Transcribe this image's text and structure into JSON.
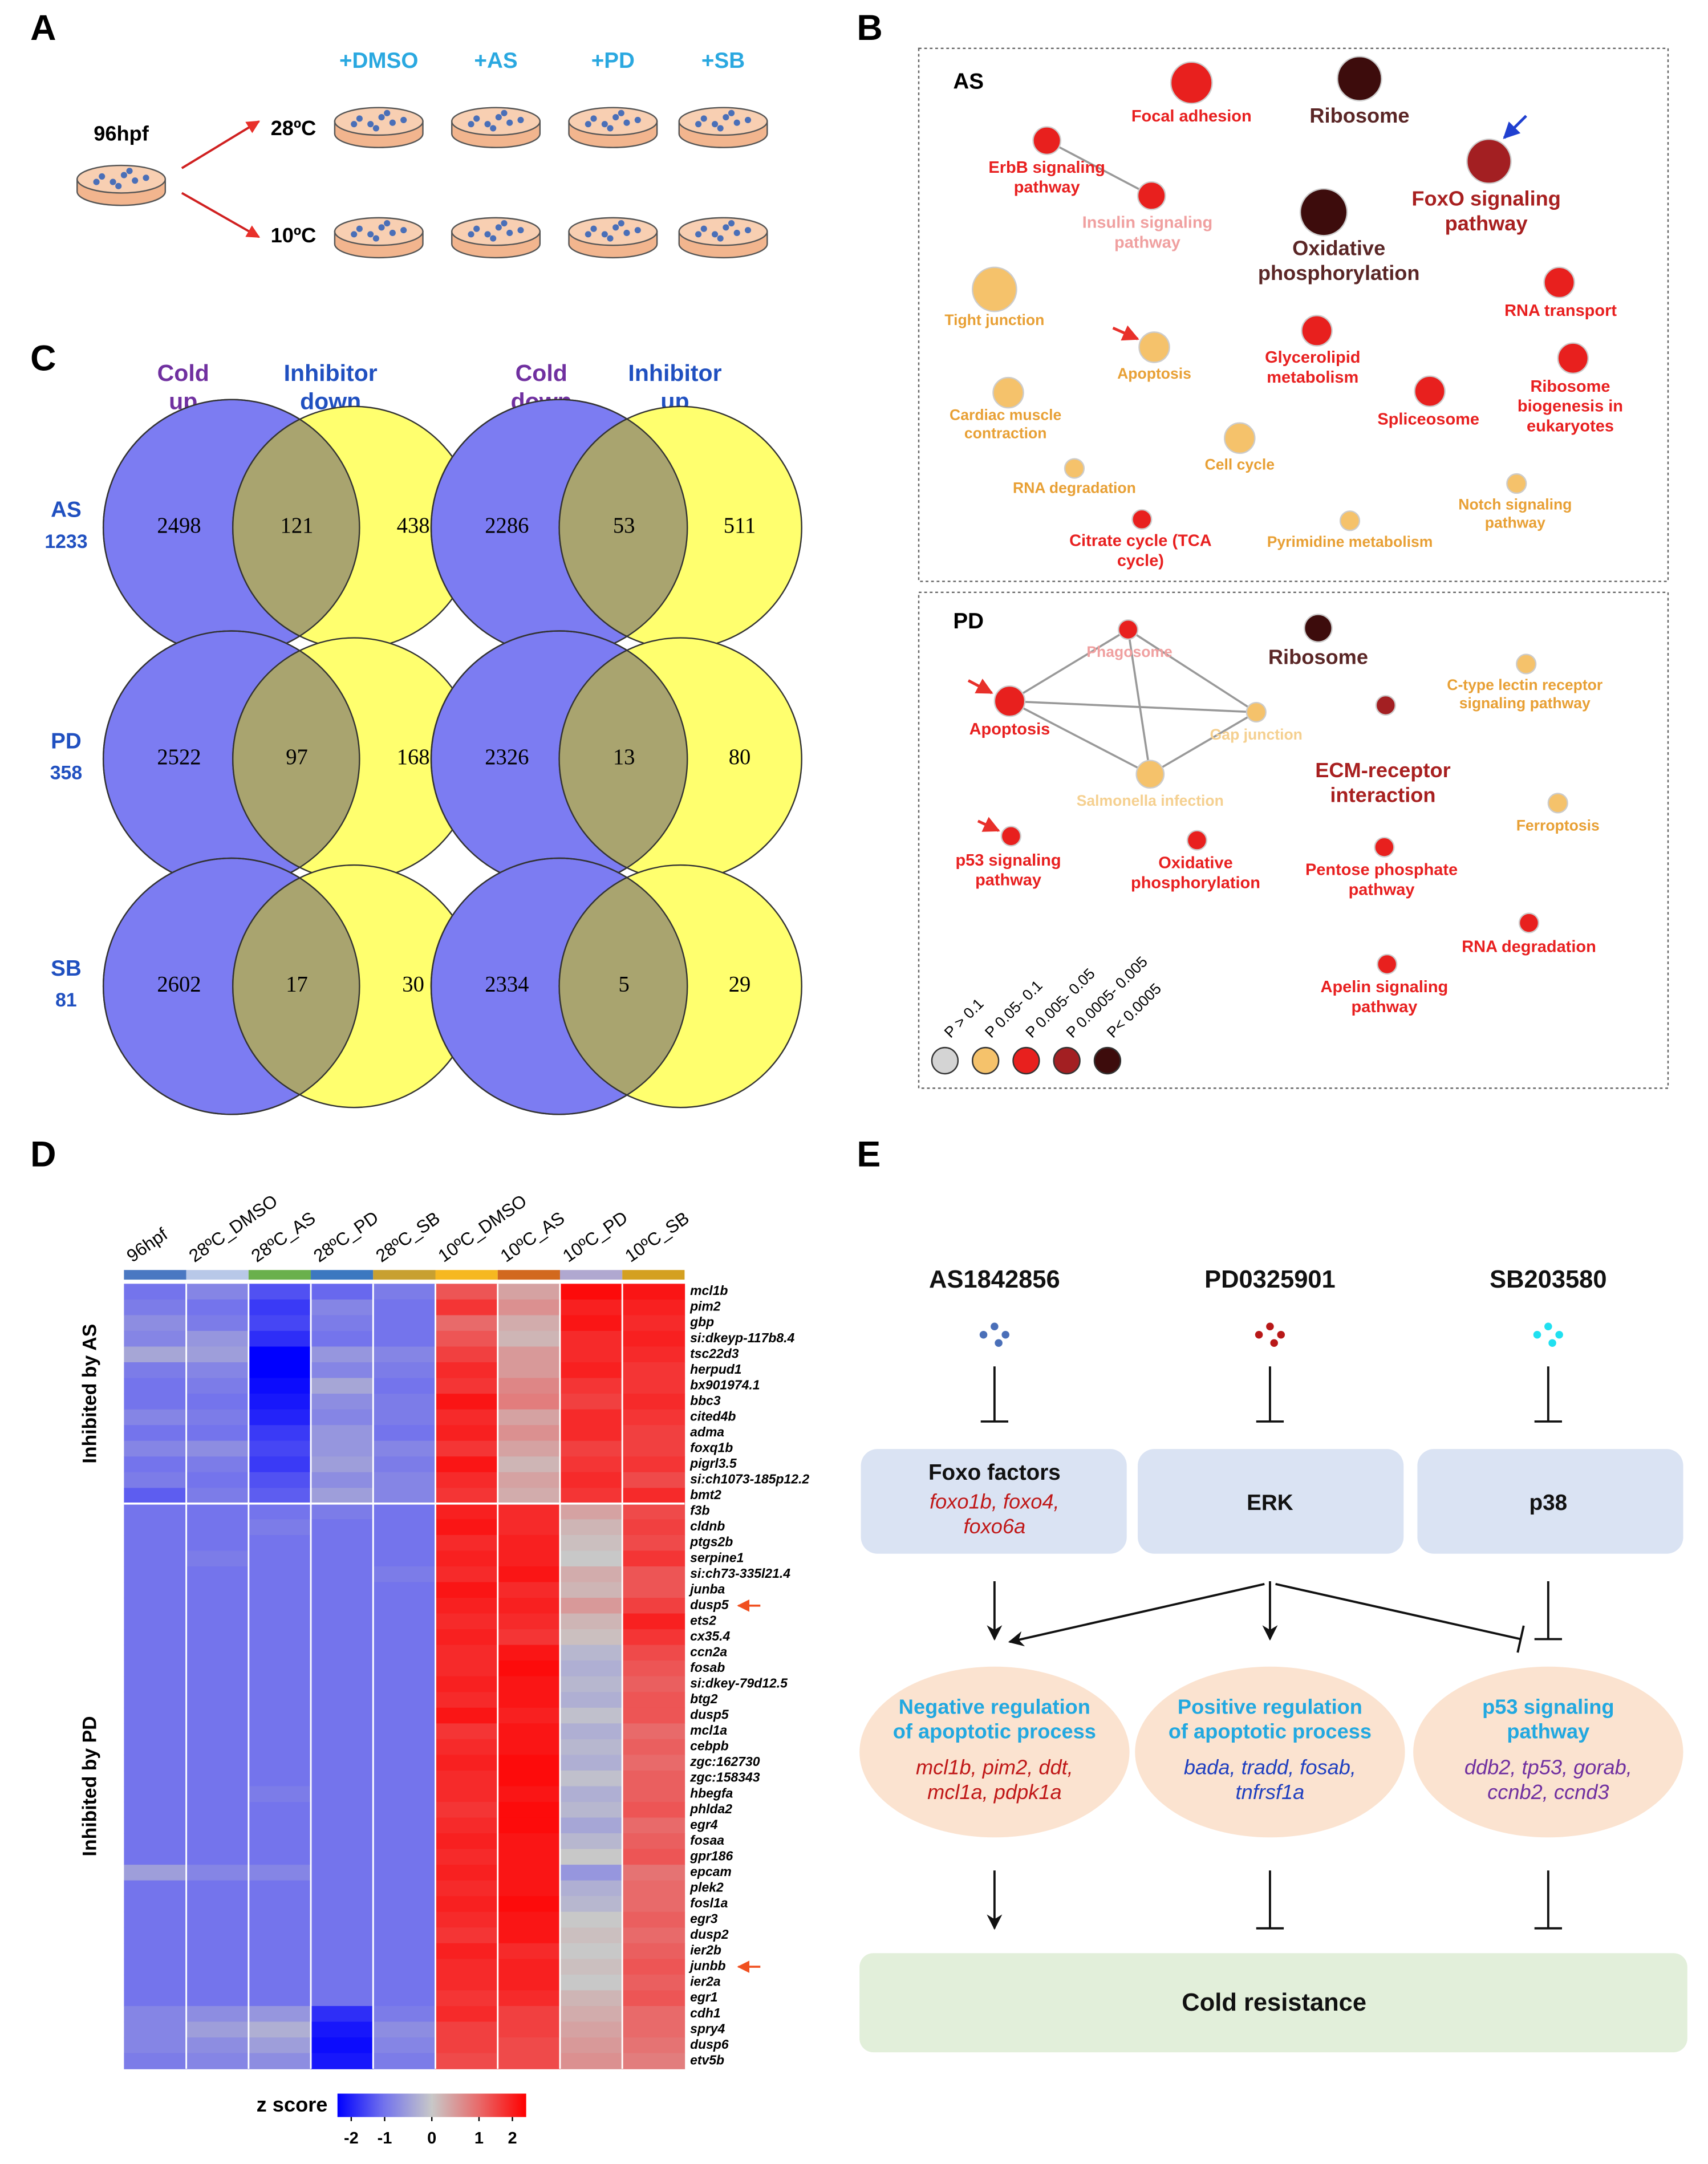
{
  "panel_labels": [
    "A",
    "B",
    "C",
    "D",
    "E"
  ],
  "panel_a": {
    "start": "96hpf",
    "temperatures": [
      "28ºC",
      "10ºC"
    ],
    "treatments": [
      "+DMSO",
      "+AS",
      "+PD",
      "+SB"
    ]
  },
  "panel_b": {
    "groups": [
      {
        "title": "AS",
        "nodes": [
          {
            "label": "Focal adhesion",
            "p": 2
          },
          {
            "label": "Ribosome",
            "p": 4
          },
          {
            "label": "ErbB signaling\npathway",
            "p": 2
          },
          {
            "label": "Insulin signaling\npathway",
            "p": 2
          },
          {
            "label": "FoxO signaling\npathway",
            "p": 3
          },
          {
            "label": "Oxidative\nphosphorylation",
            "p": 4
          },
          {
            "label": "Tight junction",
            "p": 1
          },
          {
            "label": "Apoptosis",
            "p": 1
          },
          {
            "label": "Glycerolipid\nmetabolism",
            "p": 2
          },
          {
            "label": "RNA transport",
            "p": 2
          },
          {
            "label": "Ribosome\nbiogenesis in\neukaryotes",
            "p": 2
          },
          {
            "label": "Spliceosome",
            "p": 2
          },
          {
            "label": "Cardiac muscle\ncontraction",
            "p": 1
          },
          {
            "label": "Cell cycle",
            "p": 1
          },
          {
            "label": "RNA degradation",
            "p": 1
          },
          {
            "label": "Citrate cycle (TCA\ncycle)",
            "p": 2
          },
          {
            "label": "Pyrimidine metabolism",
            "p": 1
          },
          {
            "label": "Notch signaling\npathway",
            "p": 1
          }
        ]
      },
      {
        "title": "PD",
        "nodes": [
          {
            "label": "Phagosome",
            "p": 2
          },
          {
            "label": "Ribosome",
            "p": 4
          },
          {
            "label": "C-type lectin receptor\nsignaling pathway",
            "p": 1
          },
          {
            "label": "Apoptosis",
            "p": 2
          },
          {
            "label": "Gap junction",
            "p": 1
          },
          {
            "label": "ECM-receptor\ninteraction",
            "p": 3
          },
          {
            "label": "Salmonella infection",
            "p": 1
          },
          {
            "label": "Ferroptosis",
            "p": 1
          },
          {
            "label": "p53 signaling\npathway",
            "p": 2
          },
          {
            "label": "Oxidative\nphosphorylation",
            "p": 2
          },
          {
            "label": "Pentose phosphate\npathway",
            "p": 2
          },
          {
            "label": "RNA degradation",
            "p": 2
          },
          {
            "label": "Apelin signaling\npathway",
            "p": 2
          }
        ]
      }
    ],
    "legend": [
      {
        "label": "P > 0.1",
        "color": "#d4d4d4"
      },
      {
        "label": "P 0.05- 0.1",
        "color": "#f5c26b"
      },
      {
        "label": "P 0.005- 0.05",
        "color": "#e8201e"
      },
      {
        "label": "P 0.0005- 0.005",
        "color": "#a31f22"
      },
      {
        "label": "P< 0.0005",
        "color": "#3d0c0c"
      }
    ]
  },
  "panel_c": {
    "headers": [
      "Cold\nup",
      "Inhibitor\ndown",
      "Cold\ndown",
      "Inhibitor\nup"
    ],
    "rows": [
      {
        "name": "AS",
        "total": 1233,
        "up": [
          2498,
          121,
          438
        ],
        "down": [
          2286,
          53,
          511
        ]
      },
      {
        "name": "PD",
        "total": 358,
        "up": [
          2522,
          97,
          168
        ],
        "down": [
          2326,
          13,
          80
        ]
      },
      {
        "name": "SB",
        "total": 81,
        "up": [
          2602,
          17,
          30
        ],
        "down": [
          2334,
          5,
          29
        ]
      }
    ]
  },
  "chart_data": {
    "type": "heatmap",
    "x": [
      "96hpf",
      "28ºC_DMSO",
      "28ºC_AS",
      "28ºC_PD",
      "28ºC_SB",
      "10ºC_DMSO",
      "10ºC_AS",
      "10ºC_PD",
      "10ºC_SB"
    ],
    "x_colors": [
      "#4a78c2",
      "#b8c8e8",
      "#6ab04c",
      "#3c78c0",
      "#c8a030",
      "#f6b820",
      "#d2691e",
      "#b0a8d0",
      "#d4a020"
    ],
    "groups": [
      {
        "label": "Inhibited by AS",
        "genes": [
          "mcl1b",
          "pim2",
          "gbp",
          "si:dkeyp-117b8.4",
          "tsc22d3",
          "herpud1",
          "bx901974.1",
          "bbc3",
          "cited4b",
          "adma",
          "foxq1b",
          "pigrl3.5",
          "si:ch1073-185p12.2",
          "bmt2"
        ],
        "z": [
          [
            -1,
            -0.8,
            -1.3,
            -1.1,
            -0.9,
            1.2,
            0.4,
            1.9,
            1.8
          ],
          [
            -0.9,
            -1,
            -1.5,
            -0.8,
            -1,
            1.5,
            0.6,
            1.7,
            1.7
          ],
          [
            -0.7,
            -0.9,
            -1.4,
            -0.9,
            -1,
            1,
            0.3,
            1.8,
            1.6
          ],
          [
            -0.8,
            -0.6,
            -1.6,
            -1,
            -1,
            1.2,
            0.2,
            1.6,
            1.7
          ],
          [
            -0.4,
            -0.5,
            -2,
            -0.6,
            -0.8,
            1.4,
            0.5,
            1.6,
            1.6
          ],
          [
            -0.9,
            -0.8,
            -2,
            -0.8,
            -0.9,
            1.6,
            0.5,
            1.7,
            1.5
          ],
          [
            -1,
            -0.9,
            -1.9,
            -0.4,
            -1,
            1.5,
            0.7,
            1.5,
            1.5
          ],
          [
            -1,
            -1,
            -1.8,
            -0.7,
            -0.9,
            1.8,
            0.8,
            1.4,
            1.6
          ],
          [
            -0.8,
            -0.9,
            -1.7,
            -0.8,
            -0.9,
            1.6,
            0.4,
            1.6,
            1.5
          ],
          [
            -1,
            -1,
            -1.5,
            -0.6,
            -1,
            1.7,
            0.6,
            1.6,
            1.4
          ],
          [
            -0.8,
            -0.7,
            -1.4,
            -0.6,
            -0.8,
            1.5,
            0.4,
            1.4,
            1.4
          ],
          [
            -1,
            -0.9,
            -1.5,
            -0.5,
            -0.9,
            1.8,
            0.2,
            1.5,
            1.5
          ],
          [
            -0.9,
            -1,
            -1.3,
            -0.7,
            -0.8,
            1.6,
            0.4,
            1.6,
            1.3
          ],
          [
            -1.2,
            -0.9,
            -1.2,
            -0.5,
            -0.8,
            1.5,
            0.3,
            1.5,
            1.6
          ]
        ]
      },
      {
        "label": "Inhibited by PD",
        "genes": [
          "f3b",
          "cldnb",
          "ptgs2b",
          "serpine1",
          "si:ch73-335l21.4",
          "junba",
          "dusp5",
          "ets2",
          "cx35.4",
          "ccn2a",
          "fosab",
          "si:dkey-79d12.5",
          "btg2",
          "dusp5",
          "mcl1a",
          "cebpb",
          "zgc:162730",
          "zgc:158343",
          "hbegfa",
          "phlda2",
          "egr4",
          "fosaa",
          "gpr186",
          "epcam",
          "plek2",
          "fosl1a",
          "egr3",
          "dusp2",
          "ier2b",
          "junbb",
          "ier2a",
          "egr1",
          "cdh1",
          "spry4",
          "dusp6",
          "etv5b"
        ],
        "z": [
          [
            -1,
            -1,
            -1,
            -0.9,
            -1,
            1.7,
            1.6,
            0.4,
            1.3
          ],
          [
            -1,
            -1,
            -0.9,
            -1,
            -1,
            1.8,
            1.6,
            0.2,
            1.4
          ],
          [
            -1,
            -1,
            -1,
            -1,
            -1,
            1.6,
            1.7,
            0.1,
            1.3
          ],
          [
            -1,
            -0.9,
            -1,
            -1,
            -1,
            1.7,
            1.7,
            0,
            1.5
          ],
          [
            -1,
            -1,
            -1,
            -1,
            -0.9,
            1.6,
            1.8,
            0.3,
            1.2
          ],
          [
            -1,
            -1,
            -1,
            -1,
            -1,
            1.8,
            1.6,
            0.2,
            1.2
          ],
          [
            -1,
            -1,
            -1,
            -1,
            -1,
            1.7,
            1.7,
            0.5,
            1.4
          ],
          [
            -1,
            -1,
            -1,
            -1,
            -1,
            1.6,
            1.6,
            0.2,
            1.7
          ],
          [
            -1,
            -1,
            -1,
            -1,
            -1,
            1.7,
            1.5,
            0.1,
            1.5
          ],
          [
            -1,
            -1,
            -1,
            -1,
            -1,
            1.6,
            1.8,
            -0.2,
            1.3
          ],
          [
            -1,
            -1,
            -1,
            -1,
            -1,
            1.6,
            1.9,
            -0.3,
            1.2
          ],
          [
            -1,
            -1,
            -1,
            -1,
            -1,
            1.7,
            1.8,
            -0.2,
            1.1
          ],
          [
            -1,
            -1,
            -1,
            -1,
            -1,
            1.6,
            1.8,
            -0.3,
            1.2
          ],
          [
            -1,
            -1,
            -1,
            -1,
            -1,
            1.8,
            1.7,
            -0.1,
            1.2
          ],
          [
            -1,
            -1,
            -1,
            -1,
            -1,
            1.5,
            1.8,
            -0.3,
            1
          ],
          [
            -1,
            -1,
            -1,
            -1,
            -1,
            1.6,
            1.8,
            -0.2,
            1.1
          ],
          [
            -1,
            -1,
            -1,
            -1,
            -1,
            1.7,
            1.9,
            -0.3,
            1
          ],
          [
            -1,
            -1,
            -1,
            -1,
            -1,
            1.6,
            1.9,
            -0.1,
            1.1
          ],
          [
            -1,
            -1,
            -0.9,
            -1,
            -1,
            1.6,
            1.8,
            -0.3,
            1.1
          ],
          [
            -1,
            -1,
            -1,
            -1,
            -1,
            1.5,
            1.9,
            -0.2,
            1.2
          ],
          [
            -1,
            -1,
            -1,
            -1,
            -1,
            1.6,
            1.9,
            -0.4,
            1
          ],
          [
            -1,
            -1,
            -1,
            -1,
            -1,
            1.7,
            1.8,
            -0.2,
            1.1
          ],
          [
            -1,
            -1,
            -1,
            -1,
            -1,
            1.6,
            1.8,
            0,
            1.2
          ],
          [
            -0.5,
            -0.8,
            -0.8,
            -1,
            -1,
            1.7,
            1.8,
            -0.6,
            0.9
          ],
          [
            -1,
            -1,
            -1,
            -1,
            -1,
            1.6,
            1.8,
            -0.3,
            1
          ],
          [
            -1,
            -1,
            -1,
            -1,
            -1,
            1.7,
            1.9,
            -0.2,
            1
          ],
          [
            -1,
            -1,
            -1,
            -1,
            -1,
            1.6,
            1.8,
            0,
            1.1
          ],
          [
            -1,
            -1,
            -1,
            -1,
            -1,
            1.5,
            1.8,
            0.1,
            1
          ],
          [
            -1,
            -1,
            -1,
            -1,
            -1,
            1.7,
            1.6,
            0,
            1.1
          ],
          [
            -1,
            -1,
            -1,
            -1,
            -1,
            1.6,
            1.7,
            0.1,
            1.2
          ],
          [
            -1,
            -1,
            -1,
            -1,
            -1,
            1.6,
            1.7,
            0,
            1.1
          ],
          [
            -1,
            -1,
            -1,
            -1,
            -1,
            1.5,
            1.6,
            0.2,
            1.2
          ],
          [
            -0.8,
            -0.7,
            -0.6,
            -1.6,
            -0.9,
            1.6,
            1.4,
            0.3,
            1
          ],
          [
            -0.8,
            -0.5,
            -0.3,
            -1.8,
            -0.7,
            1.4,
            1.4,
            0.4,
            1
          ],
          [
            -0.8,
            -0.7,
            -0.5,
            -1.9,
            -0.8,
            1.4,
            1.3,
            0.5,
            0.9
          ],
          [
            -0.9,
            -0.8,
            -0.7,
            -1.8,
            -0.9,
            1.3,
            1.3,
            0.6,
            0.8
          ]
        ]
      }
    ],
    "colorbar_title": "z score",
    "zlim": [
      -2,
      2
    ],
    "zticks": [
      -2,
      -1,
      0,
      1,
      2
    ],
    "colors": [
      "#0000ff",
      "#7474ec",
      "#c8c8c8",
      "#e86a6a",
      "#ff0000"
    ]
  },
  "panel_e": {
    "drugs": [
      "AS1842856",
      "PD0325901",
      "SB203580"
    ],
    "targets": [
      {
        "name": "Foxo factors",
        "genes": "foxo1b, foxo4,\nfoxo6a"
      },
      {
        "name": "ERK"
      },
      {
        "name": "p38"
      }
    ],
    "processes": [
      {
        "name": "Negative regulation\nof apoptotic process",
        "genes": "mcl1b,  pim2,  ddt,\nmcl1a,  pdpk1a"
      },
      {
        "name": "Positive regulation\nof apoptotic process",
        "genes": "bada,  tradd,  fosab,\ntnfrsf1a"
      },
      {
        "name": "p53 signaling\npathway",
        "genes": "ddb2,  tp53,  gorab,\nccnb2,   ccnd3"
      }
    ],
    "outcome": "Cold resistance"
  }
}
